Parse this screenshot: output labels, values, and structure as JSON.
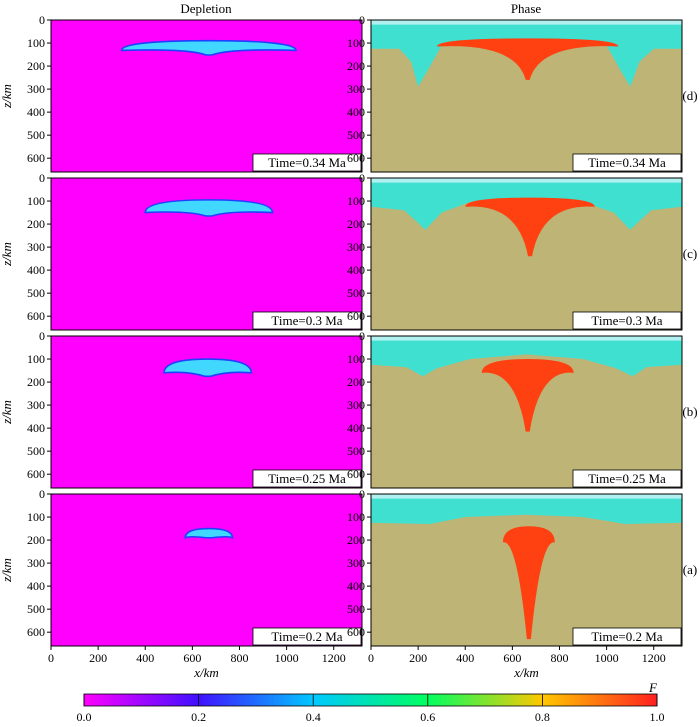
{
  "columns": {
    "left_title": "Depletion",
    "right_title": "Phase"
  },
  "y_axis": {
    "label": "z/km",
    "ticks": [
      "0",
      "100",
      "200",
      "300",
      "400",
      "500",
      "600"
    ],
    "range": [
      0,
      660
    ]
  },
  "x_axis": {
    "label": "x/km",
    "ticks": [
      "0",
      "200",
      "400",
      "600",
      "800",
      "1000",
      "1200"
    ],
    "range": [
      0,
      1320
    ]
  },
  "rows": [
    {
      "panel_label": "(d)",
      "time_label": "Time=0.34 Ma"
    },
    {
      "panel_label": "(c)",
      "time_label": "Time=0.3 Ma"
    },
    {
      "panel_label": "(b)",
      "time_label": "Time=0.25 Ma"
    },
    {
      "panel_label": "(a)",
      "time_label": "Time=0.2 Ma"
    }
  ],
  "colorbar": {
    "label": "F",
    "ticks": [
      "0.0",
      "0.2",
      "0.4",
      "0.6",
      "0.8",
      "1.0"
    ],
    "range": [
      0,
      1
    ],
    "colors": [
      "#ff00ff",
      "#4010ff",
      "#00c8ff",
      "#00ff60",
      "#ffc800",
      "#ff2020"
    ]
  },
  "colors": {
    "depletion_bg": "#ff00ff",
    "depletion_melt": "#40d8ff",
    "depletion_melt_edge": "#2040ff",
    "phase_mantle": "#bdb476",
    "phase_lithosphere": "#40e0d0",
    "phase_crust": "#b0f0f0",
    "phase_melt": "#ff4010"
  }
}
